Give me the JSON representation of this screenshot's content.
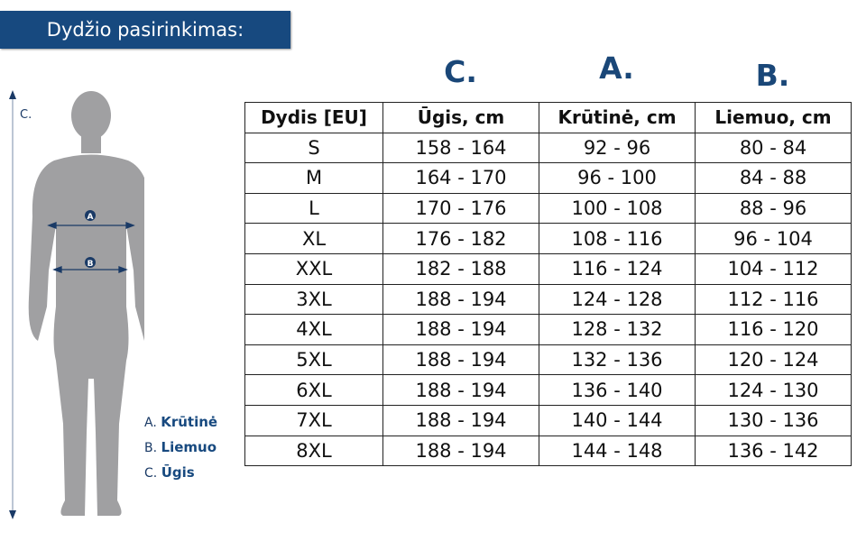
{
  "banner": {
    "title": "Dydžio pasirinkimas:"
  },
  "figure": {
    "height_label": "C.",
    "marker_a": "A",
    "marker_b": "B",
    "silhouette_color": "#a0a0a2",
    "accent_color": "#17497f"
  },
  "column_letters": [
    "C.",
    "A.",
    "B."
  ],
  "legend": [
    {
      "letter": "A.",
      "label": "Krūtinė"
    },
    {
      "letter": "B.",
      "label": "Liemuo"
    },
    {
      "letter": "C.",
      "label": "Ūgis"
    }
  ],
  "table": {
    "headers": [
      "Dydis [EU]",
      "Ūgis, cm",
      "Krūtinė, cm",
      "Liemuo, cm"
    ],
    "rows": [
      [
        "S",
        "158 - 164",
        "92 - 96",
        "80 - 84"
      ],
      [
        "M",
        "164 - 170",
        "96 - 100",
        "84 - 88"
      ],
      [
        "L",
        "170 - 176",
        "100 - 108",
        "88 - 96"
      ],
      [
        "XL",
        "176 - 182",
        "108 - 116",
        "96 - 104"
      ],
      [
        "XXL",
        "182 - 188",
        "116 - 124",
        "104 - 112"
      ],
      [
        "3XL",
        "188 - 194",
        "124 - 128",
        "112 - 116"
      ],
      [
        "4XL",
        "188 - 194",
        "128 - 132",
        "116 - 120"
      ],
      [
        "5XL",
        "188 - 194",
        "132 - 136",
        "120 - 124"
      ],
      [
        "6XL",
        "188 - 194",
        "136 - 140",
        "124 - 130"
      ],
      [
        "7XL",
        "188 - 194",
        "140 - 144",
        "130 - 136"
      ],
      [
        "8XL",
        "188 - 194",
        "144 - 148",
        "136 - 142"
      ]
    ]
  }
}
